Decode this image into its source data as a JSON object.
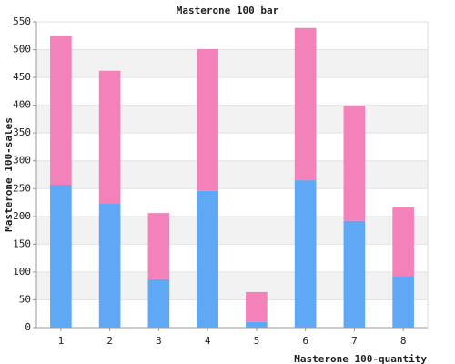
{
  "chart_data": {
    "type": "stacked-bar",
    "title": "Masterone 100 bar",
    "x_label": "Masterone 100-quantity",
    "y_label": "Masterone 100-sales",
    "categories": [
      "1",
      "2",
      "3",
      "4",
      "5",
      "6",
      "7",
      "8"
    ],
    "series": [
      {
        "color": "#5fa8f5",
        "values": [
          257,
          224,
          87,
          246,
          10,
          265,
          192,
          93
        ]
      },
      {
        "color": "#f282b9",
        "values": [
          267,
          238,
          119,
          255,
          54,
          274,
          207,
          123
        ]
      }
    ],
    "ylim": [
      0,
      550
    ],
    "yticks": [
      0,
      50,
      100,
      150,
      200,
      250,
      300,
      350,
      400,
      450,
      500,
      550
    ],
    "grid": "bands"
  }
}
